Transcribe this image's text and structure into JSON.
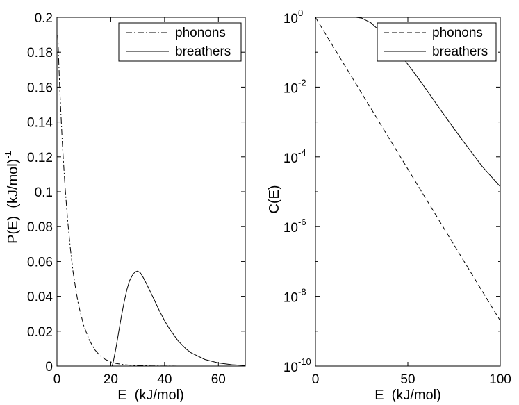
{
  "chart_data": [
    {
      "type": "line",
      "xlabel": "E  (kJ/mol)",
      "ylabel": "P(E)  (kJ/mol)",
      "ylabel_exponent": "-1",
      "xlim": [
        0,
        70
      ],
      "ylim": [
        0,
        0.2
      ],
      "xticks": [
        0,
        20,
        40,
        60
      ],
      "yticks": [
        0,
        0.02,
        0.04,
        0.06,
        0.08,
        0.1,
        0.12,
        0.14,
        0.16,
        0.18,
        0.2
      ],
      "legend_position": "top-right",
      "series": [
        {
          "name": "phonons",
          "style": "dash-dot",
          "x": [
            0.3,
            1,
            2,
            3,
            4,
            5,
            6,
            7,
            8,
            10,
            12,
            14,
            16,
            18,
            20,
            22,
            25,
            28,
            30,
            35,
            40,
            50,
            60,
            70
          ],
          "y": [
            0.19,
            0.16,
            0.128,
            0.103,
            0.083,
            0.067,
            0.054,
            0.044,
            0.035,
            0.023,
            0.015,
            0.0095,
            0.006,
            0.0038,
            0.0024,
            0.0015,
            0.0008,
            0.0004,
            0.0003,
            0.0001,
            4e-05,
            1e-05,
            0,
            0
          ]
        },
        {
          "name": "breathers",
          "style": "solid",
          "x": [
            20.5,
            21,
            22,
            23,
            24,
            25,
            26,
            27,
            28,
            29,
            30,
            31,
            32,
            33,
            34,
            36,
            38,
            40,
            42,
            45,
            48,
            50,
            55,
            60,
            65,
            70
          ],
          "y": [
            0,
            0.003,
            0.011,
            0.02,
            0.029,
            0.037,
            0.044,
            0.049,
            0.052,
            0.054,
            0.0545,
            0.0535,
            0.051,
            0.048,
            0.045,
            0.0385,
            0.032,
            0.026,
            0.021,
            0.0145,
            0.0098,
            0.0075,
            0.0038,
            0.0018,
            0.0008,
            0.0003
          ]
        }
      ]
    },
    {
      "type": "line",
      "xlabel": "E  (kJ/mol)",
      "ylabel": "C(E)",
      "xlim": [
        0,
        100
      ],
      "ylim_log10": [
        -10,
        0
      ],
      "yscale": "log",
      "xticks": [
        0,
        50,
        100
      ],
      "ytick_exponents": [
        0,
        -2,
        -4,
        -6,
        -8,
        -10
      ],
      "ytick_base": "10",
      "legend_position": "top-right",
      "series": [
        {
          "name": "phonons",
          "style": "dashed",
          "x": [
            0,
            100
          ],
          "y": [
            1,
            2e-09
          ]
        },
        {
          "name": "breathers",
          "style": "solid",
          "x": [
            0,
            20,
            22,
            25,
            30,
            35,
            40,
            45,
            50,
            55,
            60,
            70,
            80,
            90,
            100
          ],
          "y": [
            1,
            1,
            1,
            0.95,
            0.7,
            0.4,
            0.2,
            0.1,
            0.045,
            0.02,
            0.0085,
            0.0015,
            0.00028,
            5.5e-05,
            1.4e-05
          ]
        }
      ]
    }
  ]
}
